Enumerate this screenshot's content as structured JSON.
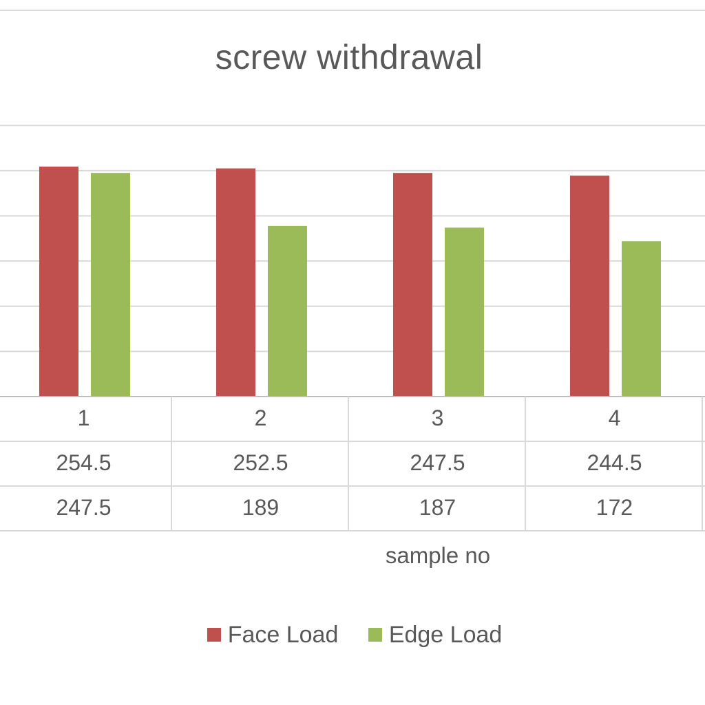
{
  "chart_data": {
    "type": "bar",
    "title": "screw withdrawal",
    "xlabel": "sample no",
    "ylabel": "",
    "categories": [
      "1",
      "2",
      "3",
      "4"
    ],
    "series": [
      {
        "name": "Face Load",
        "color": "#c0504d",
        "values": [
          254.5,
          252.5,
          247.5,
          244.5
        ]
      },
      {
        "name": "Edge Load",
        "color": "#9bbb59",
        "values": [
          247.5,
          189,
          187,
          172
        ]
      }
    ],
    "ylim": [
      0,
      300
    ],
    "grid": true,
    "legend_position": "bottom",
    "data_table": true
  }
}
